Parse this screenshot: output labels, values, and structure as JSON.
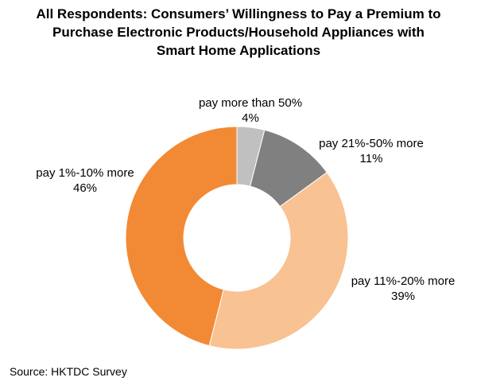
{
  "chart_data": {
    "type": "pie",
    "variant": "donut",
    "title_lines": [
      "All Respondents: Consumers’ Willingness to Pay a Premium to",
      "Purchase Electronic Products/Household Appliances with",
      "Smart Home Applications"
    ],
    "slices": [
      {
        "label": "pay more than 50%",
        "value": 4,
        "value_label": "4%",
        "color": "#c0c0c0"
      },
      {
        "label": "pay 21%-50% more",
        "value": 11,
        "value_label": "11%",
        "color": "#808080"
      },
      {
        "label": "pay 11%-20% more",
        "value": 39,
        "value_label": "39%",
        "color": "#f9c292"
      },
      {
        "label": "pay 1%-10% more",
        "value": 46,
        "value_label": "46%",
        "color": "#f28a35"
      }
    ],
    "source": "Source: HKTDC Survey"
  }
}
